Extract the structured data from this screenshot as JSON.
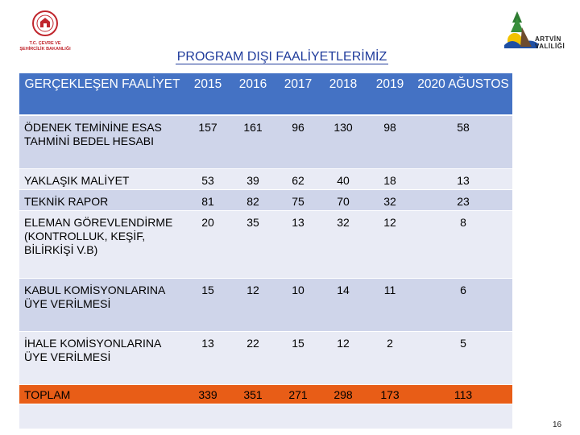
{
  "logos": {
    "left": {
      "line1": "T.C. ÇEVRE VE",
      "line2": "ŞEHİRCİLİK BAKANLIĞI"
    },
    "right": {
      "line1": "ARTVİN",
      "line2": "VALİLİĞİ"
    }
  },
  "title": "PROGRAM DIŞI FAALİYETLERİMİZ",
  "table": {
    "headers": [
      "GERÇEKLEŞEN FAALİYET",
      "2015",
      "2016",
      "2017",
      "2018",
      "2019",
      "2020 AĞUSTOS"
    ],
    "rows": [
      {
        "label": "ÖDENEK TEMİNİNE ESAS TAHMİNİ BEDEL HESABI",
        "values": [
          "157",
          "161",
          "96",
          "130",
          "98",
          "58"
        ]
      },
      {
        "label": "YAKLAŞIK MALİYET",
        "values": [
          "53",
          "39",
          "62",
          "40",
          "18",
          "13"
        ]
      },
      {
        "label": "TEKNİK RAPOR",
        "values": [
          "81",
          "82",
          "75",
          "70",
          "32",
          "23"
        ]
      },
      {
        "label": "ELEMAN GÖREVLENDİRME (KONTROLLUK, KEŞİF, BİLİRKİŞİ V.B)",
        "values": [
          "20",
          "35",
          "13",
          "32",
          "12",
          "8"
        ]
      },
      {
        "label": "KABUL KOMİSYONLARINA ÜYE VERİLMESİ",
        "values": [
          "15",
          "12",
          "10",
          "14",
          "11",
          "6"
        ]
      },
      {
        "label": "İHALE KOMİSYONLARINA ÜYE VERİLMESİ",
        "values": [
          "13",
          "22",
          "15",
          "12",
          "2",
          "5"
        ]
      }
    ],
    "total": {
      "label": "TOPLAM",
      "values": [
        "339",
        "351",
        "271",
        "298",
        "173",
        "113"
      ]
    }
  },
  "page_number": "16",
  "colors": {
    "header": "#4472c4",
    "row_dark": "#cfd5ea",
    "row_light": "#e9ebf5",
    "total": "#e85d17",
    "title": "#1f3b9b"
  }
}
